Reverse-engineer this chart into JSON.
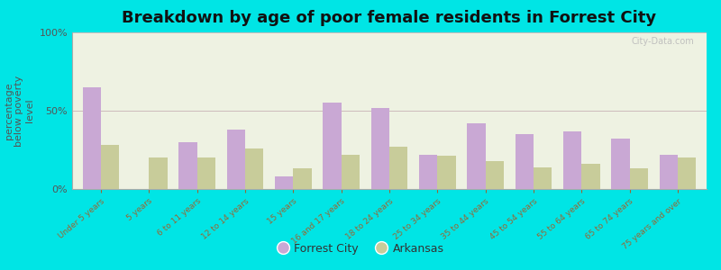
{
  "title": "Breakdown by age of poor female residents in Forrest City",
  "ylabel": "percentage\nbelow poverty\nlevel",
  "categories": [
    "Under 5 years",
    "5 years",
    "6 to 11 years",
    "12 to 14 years",
    "15 years",
    "16 and 17 years",
    "18 to 24 years",
    "25 to 34 years",
    "35 to 44 years",
    "45 to 54 years",
    "55 to 64 years",
    "65 to 74 years",
    "75 years and over"
  ],
  "forrest_city": [
    65,
    0,
    30,
    38,
    8,
    55,
    52,
    22,
    42,
    35,
    37,
    32,
    22
  ],
  "arkansas": [
    28,
    20,
    20,
    26,
    13,
    22,
    27,
    21,
    18,
    14,
    16,
    13,
    20
  ],
  "fc_color": "#c9a8d4",
  "ar_color": "#c8cc9a",
  "bg_color": "#00e5e5",
  "plot_bg": "#eef2e2",
  "ylim": [
    0,
    100
  ],
  "yticks": [
    0,
    50,
    100
  ],
  "ytick_labels": [
    "0%",
    "50%",
    "100%"
  ],
  "title_fontsize": 13,
  "ylabel_fontsize": 8,
  "legend_labels": [
    "Forrest City",
    "Arkansas"
  ],
  "bar_width": 0.38,
  "watermark": "City-Data.com"
}
